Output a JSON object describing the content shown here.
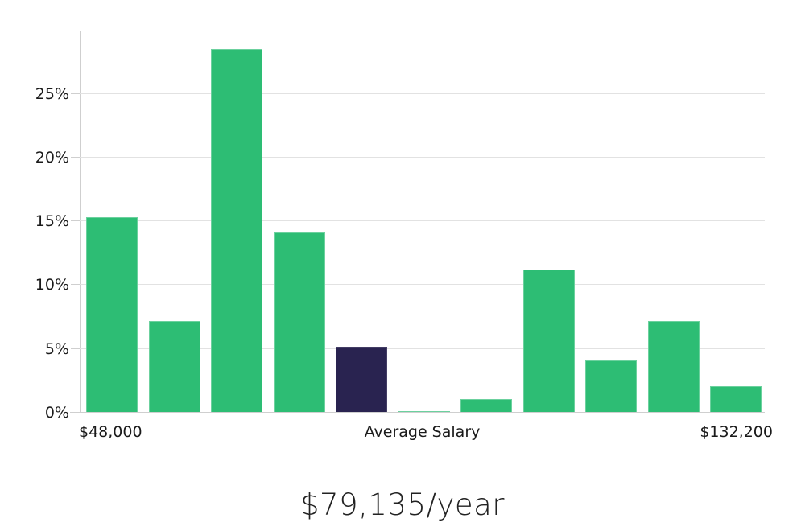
{
  "chart_data": {
    "type": "bar",
    "title": "",
    "values": [
      15.3,
      7.2,
      28.5,
      14.2,
      5.2,
      0.1,
      1.1,
      11.2,
      4.1,
      7.2,
      2.1
    ],
    "unit": "%",
    "yticks": [
      0,
      5,
      10,
      15,
      20,
      25
    ],
    "ytick_labels": [
      "0%",
      "5%",
      "10%",
      "15%",
      "20%",
      "25%"
    ],
    "ylim": [
      0,
      29.9
    ],
    "grid": true,
    "legend": false,
    "highlight_index": 4,
    "x_axis_labels": {
      "left": "$48,000",
      "center": "Average Salary",
      "right": "$132,200"
    },
    "colors": {
      "bar": "#2dbd74",
      "highlight": "#292350",
      "grid": "#e2e2e2",
      "axis": "#cfcfcf",
      "text": "#1a1a1a"
    }
  },
  "caption": {
    "average_salary": "$79,135/year"
  }
}
